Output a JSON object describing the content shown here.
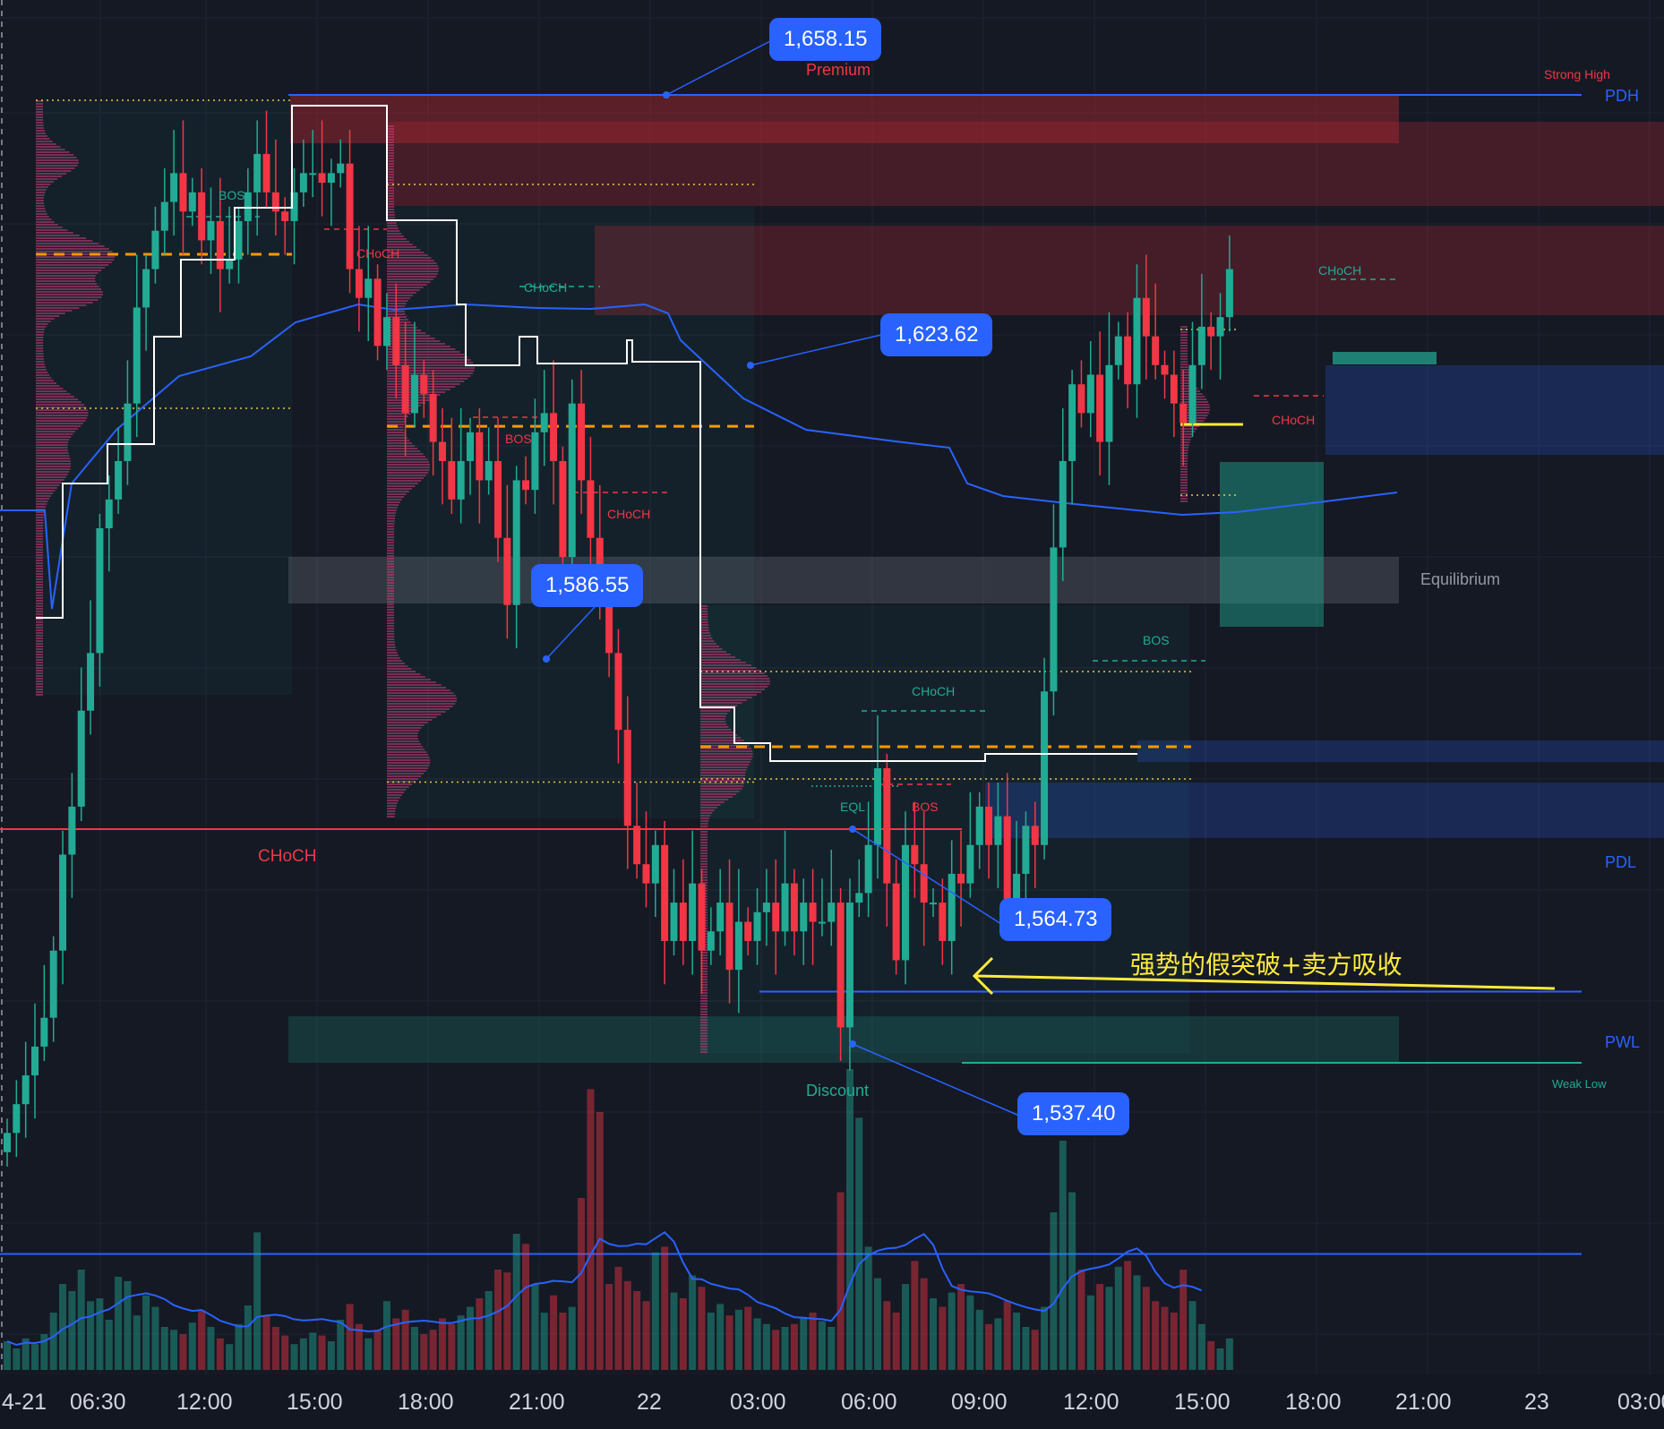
{
  "chart_data": {
    "type": "candlestick",
    "title": "",
    "price_callouts": [
      "1,658.15",
      "1,623.62",
      "1,586.55",
      "1,564.73",
      "1,537.40"
    ],
    "zone_labels": {
      "premium": "Premium",
      "equilibrium": "Equilibrium",
      "discount": "Discount",
      "strong_high": "Strong High",
      "weak_low": "Weak Low",
      "pdh": "PDH",
      "pdl": "PDL",
      "pwl": "PWL"
    },
    "structure_labels": [
      "BOS",
      "CHoCH",
      "CHoCH",
      "BOS",
      "CHoCH",
      "CHoCH",
      "CHoCH",
      "CHoCH",
      "EQL",
      "BOS",
      "BOS",
      "CHoCH"
    ],
    "annotation": "强势的假突破+卖方吸收",
    "x_tick_labels": [
      "4-21",
      "06:30",
      "12:00",
      "15:00",
      "18:00",
      "21:00",
      "22",
      "03:00",
      "06:00",
      "09:00",
      "12:00",
      "15:00",
      "18:00",
      "21:00",
      "23",
      "03:00"
    ],
    "levels": {
      "pdh": 1658.15,
      "pdl": 1564.73,
      "pwl": 1537.4,
      "poc": 1623.62,
      "lvn": 1586.55
    },
    "colors": {
      "bull": "#22ab94",
      "bear": "#f23645",
      "vwap": "#2962ff",
      "poc": "#ff9800",
      "annotation": "#ffeb3b"
    }
  }
}
